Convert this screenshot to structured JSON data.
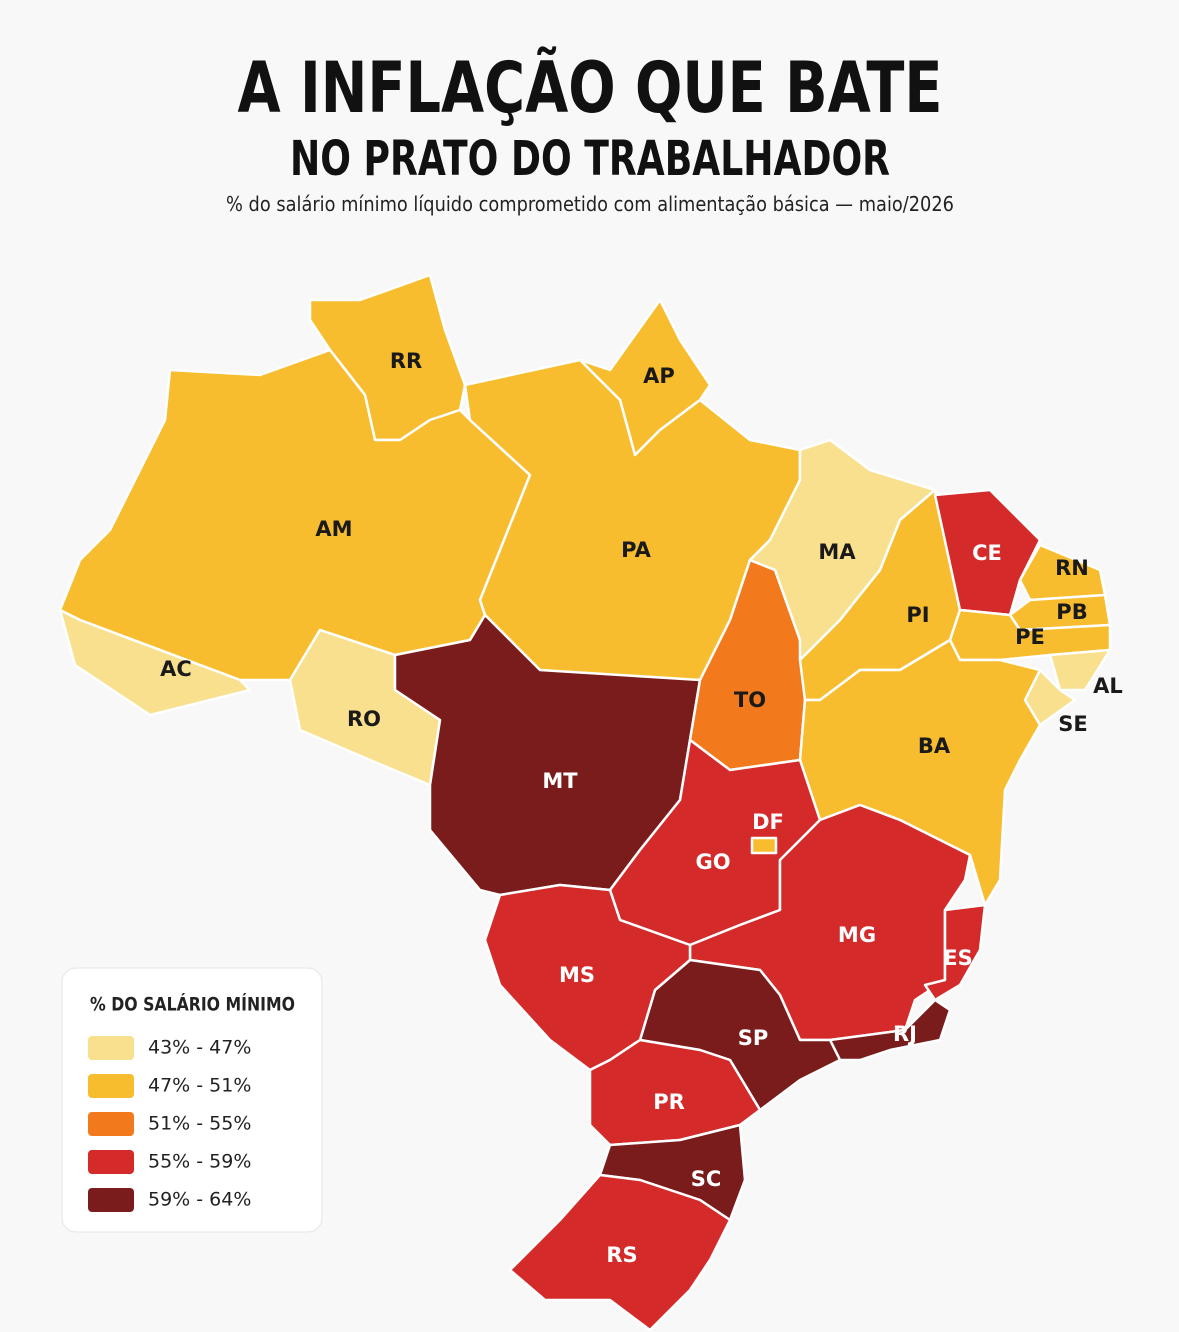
{
  "header": {
    "title": "A INFLAÇÃO QUE BATE",
    "subtitle": "NO PRATO DO TRABALHADOR",
    "description": "% do salário mínimo líquido comprometido com alimentação básica — maio/2026"
  },
  "map": {
    "states": [
      {
        "label": "RR",
        "color": "#f7bd2e"
      },
      {
        "label": "AP",
        "color": "#f7bd2e"
      },
      {
        "label": "AM",
        "color": "#f7bd2e"
      },
      {
        "label": "AC",
        "color": "#f9e08e"
      },
      {
        "label": "PA",
        "color": "#f7bd2e"
      },
      {
        "label": "RO",
        "color": "#f9e08e"
      },
      {
        "label": "MT",
        "color": "#7b1c1c"
      },
      {
        "label": "TO",
        "color": "#f27a1c"
      },
      {
        "label": "MA",
        "color": "#f9e08e"
      },
      {
        "label": "PI",
        "color": "#f7bd2e"
      },
      {
        "label": "CE",
        "color": "#d42a2a"
      },
      {
        "label": "RN",
        "color": "#f7bd2e"
      },
      {
        "label": "PB",
        "color": "#f7bd2e"
      },
      {
        "label": "PE",
        "color": "#f7bd2e"
      },
      {
        "label": "AL",
        "color": "#f9e08e"
      },
      {
        "label": "SE",
        "color": "#f9e08e"
      },
      {
        "label": "BA",
        "color": "#f7bd2e"
      },
      {
        "label": "GO",
        "color": "#d42a2a"
      },
      {
        "label": "DF",
        "color": "#f7bd2e"
      },
      {
        "label": "MG",
        "color": "#d42a2a"
      },
      {
        "label": "ES",
        "color": "#d42a2a"
      },
      {
        "label": "RJ",
        "color": "#7b1c1c"
      },
      {
        "label": "SP",
        "color": "#7b1c1c"
      },
      {
        "label": "MS",
        "color": "#d42a2a"
      },
      {
        "label": "PR",
        "color": "#d42a2a"
      },
      {
        "label": "SC",
        "color": "#7b1c1c"
      },
      {
        "label": "RS",
        "color": "#d42a2a"
      }
    ]
  },
  "legend": {
    "title": "% DO SALÁRIO MÍNIMO",
    "items": [
      {
        "label": "43% - 47%",
        "color": "#f9e08e"
      },
      {
        "label": "47% - 51%",
        "color": "#f7bd2e"
      },
      {
        "label": "51% - 55%",
        "color": "#f27a1c"
      },
      {
        "label": "55% - 59%",
        "color": "#d42a2a"
      },
      {
        "label": "59% - 64%",
        "color": "#7b1c1c"
      }
    ]
  }
}
